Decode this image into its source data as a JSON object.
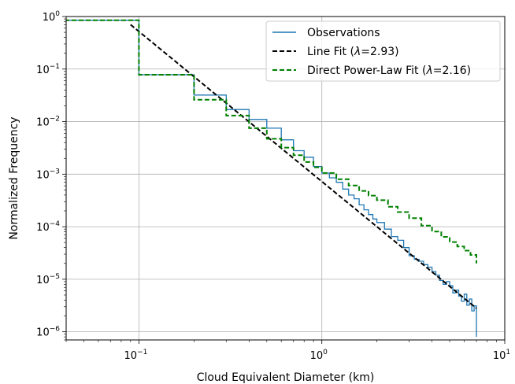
{
  "chart_data": {
    "type": "line",
    "xlabel": "Cloud Equivalent Diameter (km)",
    "ylabel": "Normalized Frequency",
    "xscale": "log",
    "yscale": "log",
    "xlim": [
      0.04,
      10
    ],
    "ylim": [
      7e-07,
      1
    ],
    "grid": true,
    "legend_position": "top-right",
    "xticks": [
      {
        "base": "10",
        "exp": "−1"
      },
      {
        "base": "10",
        "exp": "0"
      },
      {
        "base": "10",
        "exp": "1"
      }
    ],
    "yticks": [
      {
        "base": "10",
        "exp": "0"
      },
      {
        "base": "10",
        "exp": "−1"
      },
      {
        "base": "10",
        "exp": "−2"
      },
      {
        "base": "10",
        "exp": "−3"
      },
      {
        "base": "10",
        "exp": "−4"
      },
      {
        "base": "10",
        "exp": "−5"
      },
      {
        "base": "10",
        "exp": "−6"
      }
    ],
    "series": [
      {
        "name": "Observations",
        "color": "#1f77b4",
        "style": "solid-step",
        "x": [
          0.03,
          0.1,
          0.2,
          0.3,
          0.4,
          0.5,
          0.6,
          0.7,
          0.8,
          0.9,
          1.0,
          1.1,
          1.2,
          1.3,
          1.4,
          1.5,
          1.6,
          1.7,
          1.8,
          1.9,
          2.0,
          2.2,
          2.4,
          2.6,
          2.8,
          3.0,
          3.2,
          3.4,
          3.6,
          3.8,
          4.0,
          4.2,
          4.4,
          4.6,
          4.8,
          5.0,
          5.2,
          5.4,
          5.6,
          5.8,
          6.0,
          6.2,
          6.4,
          6.6,
          6.8,
          7.0
        ],
        "y": [
          0.85,
          0.078,
          0.032,
          0.017,
          0.011,
          0.0075,
          0.0045,
          0.0028,
          0.0021,
          0.0014,
          0.00105,
          0.00085,
          0.0007,
          0.00052,
          0.0004,
          0.00034,
          0.00026,
          0.00021,
          0.00017,
          0.00014,
          0.00012,
          9e-05,
          6.5e-05,
          5.5e-05,
          4e-05,
          2.8e-05,
          2.4e-05,
          2.2e-05,
          1.9e-05,
          1.7e-05,
          1.4e-05,
          1.2e-05,
          9.5e-06,
          8e-06,
          9e-06,
          7.5e-06,
          5.5e-06,
          6.2e-06,
          4.8e-06,
          3.8e-06,
          5.2e-06,
          3.2e-06,
          4.2e-06,
          2.5e-06,
          3.1e-06,
          8e-07
        ]
      },
      {
        "name": "Line Fit (λ=2.93)",
        "label_prefix": "Line Fit (",
        "label_symbol": "λ",
        "label_suffix": "=2.93)",
        "color": "#000000",
        "style": "dashed",
        "x": [
          0.09,
          7.0
        ],
        "y": [
          0.7,
          2.8e-06
        ]
      },
      {
        "name": "Direct Power-Law Fit (λ=2.16)",
        "label_prefix": "Direct Power-Law Fit (",
        "label_symbol": "λ",
        "label_suffix": "=2.16)",
        "color": "#008000",
        "style": "dashed-step",
        "x": [
          0.03,
          0.1,
          0.2,
          0.3,
          0.4,
          0.5,
          0.6,
          0.7,
          0.8,
          0.9,
          1.0,
          1.2,
          1.4,
          1.6,
          1.8,
          2.0,
          2.3,
          2.6,
          3.0,
          3.5,
          4.0,
          4.5,
          5.0,
          5.5,
          6.0,
          6.5,
          7.0
        ],
        "y": [
          0.85,
          0.078,
          0.026,
          0.013,
          0.0075,
          0.0047,
          0.0032,
          0.0023,
          0.0017,
          0.00135,
          0.00105,
          0.0008,
          0.00061,
          0.00048,
          0.00039,
          0.00032,
          0.00024,
          0.00019,
          0.000145,
          0.000105,
          8.1e-05,
          6.4e-05,
          5.1e-05,
          4.2e-05,
          3.5e-05,
          2.9e-05,
          2e-05
        ]
      }
    ]
  }
}
